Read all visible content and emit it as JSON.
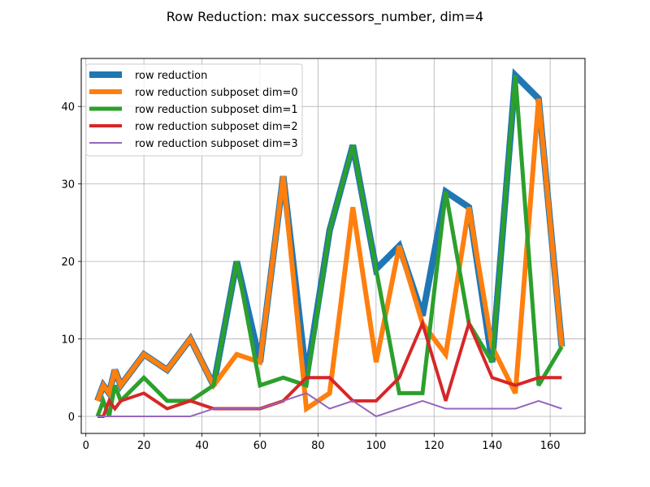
{
  "chart_data": {
    "type": "line",
    "title": "Row Reduction: max successors_number, dim=4",
    "xlabel": "",
    "ylabel": "",
    "xlim": [
      -1.6,
      172
    ],
    "ylim": [
      -2.2,
      46.2
    ],
    "x_ticks": [
      0,
      20,
      40,
      60,
      80,
      100,
      120,
      140,
      160
    ],
    "y_ticks": [
      0,
      10,
      20,
      30,
      40
    ],
    "grid": true,
    "legend_position": "upper-left",
    "series": [
      {
        "name": "row reduction",
        "color": "#1f77b4",
        "width": 8,
        "x": [
          4,
          6,
          8,
          10,
          12,
          20,
          28,
          36,
          44,
          52,
          60,
          68,
          76,
          84,
          92,
          100,
          108,
          116,
          124,
          132,
          140,
          148,
          156,
          164
        ],
        "y": [
          2,
          4,
          3,
          6,
          4,
          8,
          6,
          10,
          4,
          20,
          7,
          31,
          5,
          24,
          35,
          19,
          22,
          13,
          29,
          27,
          7,
          44,
          41,
          9
        ]
      },
      {
        "name": "row reduction subposet dim=0",
        "color": "#ff7f0e",
        "width": 6,
        "x": [
          4,
          6,
          8,
          10,
          12,
          20,
          28,
          36,
          44,
          52,
          60,
          68,
          76,
          84,
          92,
          100,
          108,
          116,
          124,
          132,
          140,
          148,
          156,
          164
        ],
        "y": [
          2,
          4,
          3,
          6,
          4,
          8,
          6,
          10,
          4,
          8,
          7,
          31,
          1,
          3,
          27,
          7,
          22,
          12,
          8,
          27,
          9,
          3,
          41,
          9
        ]
      },
      {
        "name": "row reduction subposet dim=1",
        "color": "#2ca02c",
        "width": 5,
        "x": [
          4,
          6,
          8,
          10,
          12,
          20,
          28,
          36,
          44,
          52,
          60,
          68,
          76,
          84,
          92,
          100,
          108,
          116,
          124,
          132,
          140,
          148,
          156,
          164
        ],
        "y": [
          0,
          2,
          0,
          4,
          2,
          5,
          2,
          2,
          4,
          20,
          4,
          5,
          4,
          24,
          35,
          19,
          3,
          3,
          29,
          12,
          7,
          44,
          4,
          9
        ]
      },
      {
        "name": "row reduction subposet dim=2",
        "color": "#d62728",
        "width": 4,
        "x": [
          4,
          6,
          8,
          10,
          12,
          20,
          28,
          36,
          44,
          52,
          60,
          68,
          76,
          84,
          92,
          100,
          108,
          116,
          124,
          132,
          140,
          148,
          156,
          164
        ],
        "y": [
          0,
          0,
          2,
          1,
          2,
          3,
          1,
          2,
          1,
          1,
          1,
          2,
          5,
          5,
          2,
          2,
          5,
          12,
          2,
          12,
          5,
          4,
          5,
          5
        ]
      },
      {
        "name": "row reduction subposet dim=3",
        "color": "#9467bd",
        "width": 2,
        "x": [
          4,
          6,
          8,
          10,
          12,
          20,
          28,
          36,
          44,
          52,
          60,
          68,
          76,
          84,
          92,
          100,
          108,
          116,
          124,
          132,
          140,
          148,
          156,
          164
        ],
        "y": [
          0,
          0,
          0,
          0,
          0,
          0,
          0,
          0,
          1,
          1,
          1,
          2,
          3,
          1,
          2,
          0,
          1,
          2,
          1,
          1,
          1,
          1,
          2,
          1
        ]
      }
    ]
  }
}
